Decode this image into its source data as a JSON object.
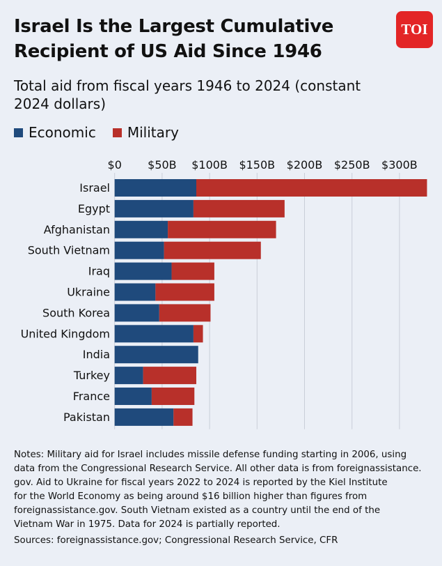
{
  "title": "Israel Is the Largest Cumulative Recipient of US Aid Since 1946",
  "logo": "TOI",
  "colors": {
    "economic": "#1f4a7c",
    "military": "#b8302a",
    "background": "#ebeff6",
    "grid": "#c9ced8"
  },
  "chart_data": {
    "type": "bar",
    "orientation": "horizontal",
    "stacked": true,
    "title": "Israel Is the Largest Cumulative Recipient of US Aid Since 1946",
    "subtitle": "Total aid from fiscal years 1946 to 2024 (constant 2024 dollars)",
    "categories": [
      "Israel",
      "Egypt",
      "Afghanistan",
      "South Vietnam",
      "Iraq",
      "Ukraine",
      "South Korea",
      "United Kingdom",
      "India",
      "Turkey",
      "France",
      "Pakistan"
    ],
    "series": [
      {
        "name": "Economic",
        "values": [
          86,
          83,
          56,
          52,
          60,
          43,
          47,
          83,
          88,
          30,
          39,
          62
        ]
      },
      {
        "name": "Military",
        "values": [
          243,
          96,
          114,
          102,
          45,
          62,
          54,
          10,
          0,
          56,
          45,
          20
        ]
      }
    ],
    "xlim": [
      0,
      330
    ],
    "x_ticks": [
      0,
      50,
      100,
      150,
      200,
      250,
      300
    ],
    "x_tick_labels": [
      "$0",
      "$50B",
      "$100B",
      "$150B",
      "$200B",
      "$250B",
      "$300B"
    ],
    "x_axis_position": "top",
    "grid": true,
    "legend": "top-left"
  },
  "notes": [
    "Notes: Military aid for Israel includes missile defense funding starting in 2006, using",
    "data from the Congressional Research Service. All other data is from foreignassistance.",
    "gov. Aid to Ukraine for fiscal years 2022 to 2024 is reported by the Kiel Institute",
    "for the World Economy as being around $16 billion higher than figures from",
    "foreignassistance.gov. South Vietnam existed as a country until the end of the",
    "Vietnam War in 1975. Data for 2024 is partially reported."
  ],
  "sources": "Sources: foreignassistance.gov; Congressional Research Service, CFR"
}
